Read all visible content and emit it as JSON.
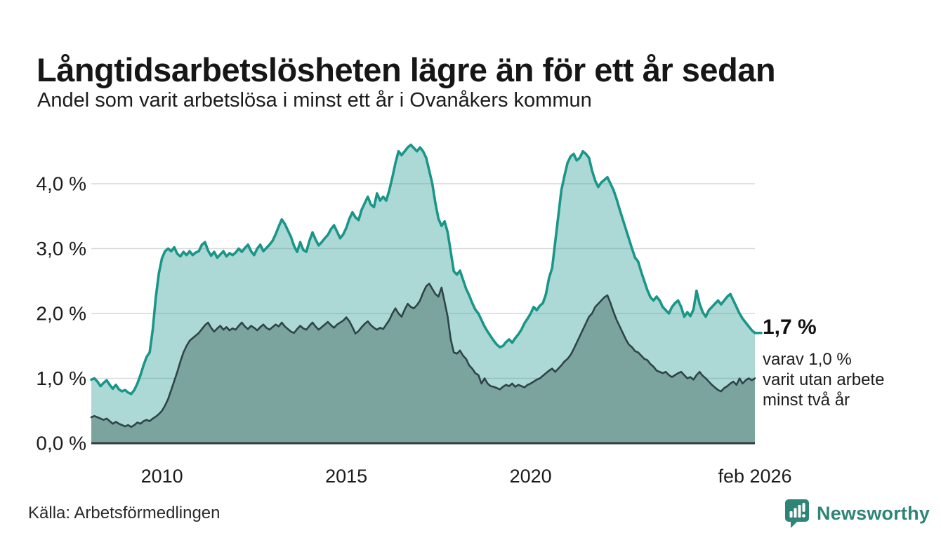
{
  "header": {
    "title": "Långtidsarbetslösheten lägre än för ett år sedan",
    "subtitle": "Andel som varit arbetslösa i minst ett år i Ovanåkers kommun"
  },
  "annotation": {
    "value": "1,7 %",
    "line1": "varav 1,0 %",
    "line2": "varit utan arbete",
    "line3": "minst två år"
  },
  "footer": {
    "source": "Källa: Arbetsförmedlingen",
    "brand": "Newsworthy"
  },
  "colors": {
    "accent_teal": "#1a9688",
    "light_area_fill": "rgba(26,150,138,0.36)",
    "dark_area_fill": "#7aa49d",
    "dark_line": "#2f4448",
    "gridline": "#d9d9d9",
    "baseline": "#333b3d",
    "tick_text": "#1b1b1b",
    "brand_teal": "#2e8577"
  },
  "chart_data": {
    "type": "area",
    "title": "Långtidsarbetslösheten lägre än för ett år sedan",
    "xlabel": "",
    "ylabel": "",
    "unit": "%",
    "grid": true,
    "legend": "none",
    "x_start": 2008.083,
    "x_end": 2026.083,
    "ylim": [
      0,
      4.67
    ],
    "y_ticks": [
      {
        "label": "0,0 %",
        "value": 0
      },
      {
        "label": "1,0 %",
        "value": 1
      },
      {
        "label": "2,0 %",
        "value": 2
      },
      {
        "label": "3,0 %",
        "value": 3
      },
      {
        "label": "4,0 %",
        "value": 4
      }
    ],
    "x_ticks": [
      {
        "label": "2010",
        "value": 2010
      },
      {
        "label": "2015",
        "value": 2015
      },
      {
        "label": "2020",
        "value": 2020
      },
      {
        "label": "feb 2026",
        "value": 2026.083
      }
    ],
    "series": [
      {
        "name": "arbetslösa minst ett år",
        "end_label": "1,7 %",
        "color": "#1a9688",
        "fill": "rgba(26,150,138,0.36)",
        "stroke_width": 3.6,
        "values": [
          0.98,
          1.0,
          0.95,
          0.88,
          0.93,
          0.97,
          0.9,
          0.84,
          0.9,
          0.83,
          0.8,
          0.82,
          0.78,
          0.76,
          0.82,
          0.92,
          1.05,
          1.2,
          1.33,
          1.4,
          1.75,
          2.25,
          2.62,
          2.85,
          2.96,
          3.0,
          2.96,
          3.02,
          2.92,
          2.88,
          2.95,
          2.9,
          2.96,
          2.9,
          2.94,
          2.96,
          3.06,
          3.1,
          2.97,
          2.89,
          2.95,
          2.86,
          2.91,
          2.96,
          2.88,
          2.93,
          2.9,
          2.94,
          3.0,
          2.95,
          3.01,
          3.06,
          2.96,
          2.9,
          3.0,
          3.06,
          2.96,
          3.01,
          3.06,
          3.12,
          3.22,
          3.34,
          3.45,
          3.38,
          3.28,
          3.18,
          3.04,
          2.95,
          3.1,
          2.98,
          2.95,
          3.12,
          3.25,
          3.14,
          3.05,
          3.1,
          3.16,
          3.21,
          3.3,
          3.36,
          3.26,
          3.16,
          3.22,
          3.32,
          3.46,
          3.56,
          3.48,
          3.44,
          3.6,
          3.7,
          3.8,
          3.68,
          3.64,
          3.85,
          3.74,
          3.8,
          3.74,
          3.9,
          4.1,
          4.32,
          4.5,
          4.44,
          4.5,
          4.56,
          4.6,
          4.55,
          4.5,
          4.56,
          4.5,
          4.4,
          4.2,
          4.0,
          3.7,
          3.46,
          3.35,
          3.42,
          3.25,
          2.95,
          2.65,
          2.6,
          2.66,
          2.52,
          2.38,
          2.28,
          2.16,
          2.06,
          2.0,
          1.9,
          1.8,
          1.72,
          1.65,
          1.58,
          1.52,
          1.48,
          1.5,
          1.56,
          1.6,
          1.55,
          1.62,
          1.68,
          1.75,
          1.85,
          1.92,
          2.0,
          2.1,
          2.05,
          2.12,
          2.16,
          2.3,
          2.55,
          2.7,
          3.1,
          3.5,
          3.9,
          4.12,
          4.32,
          4.42,
          4.46,
          4.36,
          4.4,
          4.5,
          4.46,
          4.4,
          4.2,
          4.05,
          3.95,
          4.02,
          4.06,
          4.1,
          4.0,
          3.9,
          3.76,
          3.6,
          3.45,
          3.3,
          3.15,
          3.0,
          2.86,
          2.8,
          2.64,
          2.5,
          2.36,
          2.25,
          2.2,
          2.26,
          2.2,
          2.1,
          2.05,
          2.0,
          2.1,
          2.16,
          2.2,
          2.1,
          1.95,
          2.02,
          1.96,
          2.06,
          2.35,
          2.15,
          2.02,
          1.95,
          2.05,
          2.1,
          2.15,
          2.2,
          2.14,
          2.2,
          2.26,
          2.3,
          2.2,
          2.1,
          2.0,
          1.92,
          1.86,
          1.8,
          1.74,
          1.7
        ]
      },
      {
        "name": "utan arbete minst två år",
        "end_label": "1,0 %",
        "color": "#2f4448",
        "fill": "#7aa49d",
        "stroke_width": 2.6,
        "values": [
          0.4,
          0.42,
          0.4,
          0.38,
          0.36,
          0.38,
          0.34,
          0.3,
          0.33,
          0.3,
          0.28,
          0.26,
          0.28,
          0.25,
          0.28,
          0.32,
          0.3,
          0.34,
          0.36,
          0.34,
          0.38,
          0.41,
          0.45,
          0.5,
          0.58,
          0.68,
          0.82,
          0.96,
          1.1,
          1.26,
          1.4,
          1.5,
          1.58,
          1.62,
          1.66,
          1.7,
          1.76,
          1.82,
          1.86,
          1.78,
          1.72,
          1.77,
          1.81,
          1.75,
          1.79,
          1.74,
          1.77,
          1.75,
          1.81,
          1.86,
          1.8,
          1.76,
          1.81,
          1.78,
          1.74,
          1.79,
          1.83,
          1.78,
          1.75,
          1.79,
          1.83,
          1.8,
          1.86,
          1.8,
          1.76,
          1.72,
          1.7,
          1.76,
          1.81,
          1.77,
          1.75,
          1.81,
          1.86,
          1.8,
          1.75,
          1.79,
          1.83,
          1.87,
          1.82,
          1.78,
          1.83,
          1.86,
          1.89,
          1.94,
          1.88,
          1.79,
          1.69,
          1.73,
          1.79,
          1.84,
          1.88,
          1.82,
          1.78,
          1.75,
          1.78,
          1.76,
          1.83,
          1.9,
          2.0,
          2.08,
          2.0,
          1.95,
          2.06,
          2.15,
          2.1,
          2.08,
          2.13,
          2.2,
          2.32,
          2.42,
          2.46,
          2.38,
          2.3,
          2.26,
          2.4,
          2.18,
          1.95,
          1.6,
          1.4,
          1.38,
          1.43,
          1.35,
          1.3,
          1.2,
          1.15,
          1.08,
          1.05,
          0.92,
          1.0,
          0.92,
          0.88,
          0.87,
          0.85,
          0.83,
          0.87,
          0.9,
          0.88,
          0.92,
          0.87,
          0.9,
          0.88,
          0.86,
          0.9,
          0.92,
          0.95,
          0.98,
          1.0,
          1.04,
          1.08,
          1.12,
          1.15,
          1.1,
          1.15,
          1.2,
          1.26,
          1.3,
          1.36,
          1.45,
          1.55,
          1.65,
          1.75,
          1.85,
          1.95,
          2.0,
          2.1,
          2.15,
          2.2,
          2.25,
          2.28,
          2.16,
          2.02,
          1.9,
          1.8,
          1.7,
          1.6,
          1.52,
          1.48,
          1.42,
          1.4,
          1.35,
          1.3,
          1.28,
          1.22,
          1.18,
          1.12,
          1.1,
          1.08,
          1.1,
          1.05,
          1.02,
          1.05,
          1.08,
          1.1,
          1.05,
          1.0,
          1.02,
          0.98,
          1.05,
          1.1,
          1.04,
          1.0,
          0.95,
          0.9,
          0.86,
          0.82,
          0.8,
          0.85,
          0.88,
          0.92,
          0.95,
          0.9,
          1.0,
          0.92,
          0.97,
          1.0,
          0.97,
          1.0
        ]
      }
    ]
  }
}
